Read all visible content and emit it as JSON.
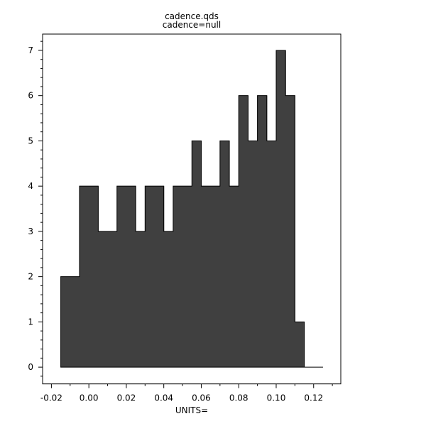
{
  "chart_data": {
    "type": "histogram",
    "title": "cadence.qds",
    "subtitle": "cadence=null",
    "xlabel": "UNITS=",
    "ylabel": "",
    "bin_width": 0.005,
    "bin_starts": [
      -0.015,
      -0.01,
      -0.005,
      0.0,
      0.005,
      0.01,
      0.015,
      0.02,
      0.025,
      0.03,
      0.035,
      0.04,
      0.045,
      0.05,
      0.055,
      0.06,
      0.065,
      0.07,
      0.075,
      0.08,
      0.085,
      0.09,
      0.095,
      0.1,
      0.105,
      0.11,
      0.115,
      0.12
    ],
    "values": [
      2,
      2,
      4,
      4,
      3,
      3,
      4,
      4,
      3,
      4,
      4,
      3,
      4,
      4,
      5,
      4,
      4,
      5,
      4,
      6,
      5,
      6,
      5,
      7,
      6,
      1,
      0,
      0
    ],
    "xlim": [
      -0.0247,
      0.1345
    ],
    "ylim": [
      -0.37,
      7.36
    ],
    "xticks": [
      "-0.02",
      "0.00",
      "0.02",
      "0.04",
      "0.06",
      "0.08",
      "0.10",
      "0.12"
    ],
    "yticks": [
      "0",
      "1",
      "2",
      "3",
      "4",
      "5",
      "6",
      "7"
    ],
    "fill_color": "#404040",
    "grid": false
  }
}
